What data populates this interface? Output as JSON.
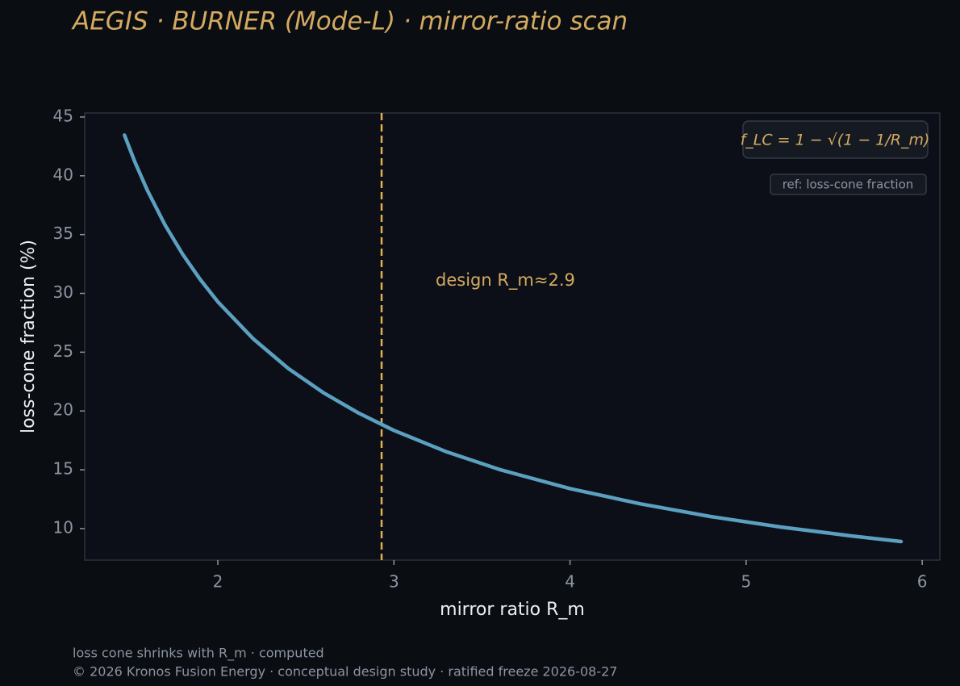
{
  "chart_data": {
    "type": "line",
    "title": "AEGIS · BURNER (Mode-L)  ·  mirror-ratio scan",
    "x_label": "mirror ratio R_m",
    "y_label": "loss-cone fraction (%)",
    "x": [
      1.47,
      1.53,
      1.6,
      1.7,
      1.8,
      1.9,
      2.0,
      2.2,
      2.4,
      2.6,
      2.8,
      3.0,
      3.3,
      3.6,
      4.0,
      4.4,
      4.8,
      5.2,
      5.6,
      5.88
    ],
    "values": [
      43.46,
      41.14,
      38.76,
      35.83,
      33.33,
      31.18,
      29.29,
      26.15,
      23.62,
      21.55,
      19.82,
      18.35,
      16.52,
      15.02,
      13.4,
      12.1,
      11.02,
      10.13,
      9.37,
      8.9
    ],
    "color": "#5ba0c0",
    "xlim": [
      1.244,
      6.1
    ],
    "ylim": [
      7.32,
      45.34
    ],
    "xticks": [
      2,
      3,
      4,
      5,
      6
    ],
    "yticks": [
      10,
      15,
      20,
      25,
      30,
      35,
      40,
      45
    ],
    "vline": 2.93,
    "vline_color": "#e0b050",
    "annotation": "design R_m≈2.9",
    "formula": "f_LC = 1 − √(1 − 1/R_m)",
    "legend": "ref: loss-cone fraction",
    "footer": [
      "loss cone shrinks with R_m · computed",
      "© 2026 Kronos Fusion Energy · conceptual design study · ratified freeze 2026-08-27"
    ]
  }
}
